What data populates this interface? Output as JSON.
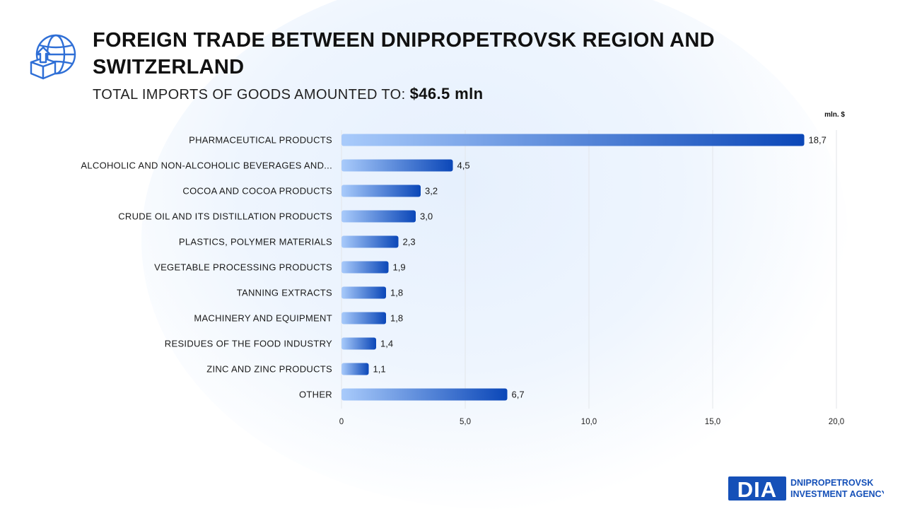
{
  "header": {
    "title": "FOREIGN TRADE BETWEEN DNIPROPETROVSK REGION AND SWITZERLAND",
    "subtitle_label": "TOTAL IMPORTS OF GOODS AMOUNTED TO:",
    "subtitle_value": "$46.5  mln",
    "icon": "globe-box-upload-icon"
  },
  "chart_data": {
    "type": "bar",
    "orientation": "horizontal",
    "unit_label": "mln. $",
    "categories": [
      "PHARMACEUTICAL PRODUCTS",
      "ALCOHOLIC AND NON-ALCOHOLIC BEVERAGES AND...",
      "COCOA AND COCOA PRODUCTS",
      "CRUDE OIL AND ITS DISTILLATION PRODUCTS",
      "PLASTICS, POLYMER MATERIALS",
      "VEGETABLE PROCESSING PRODUCTS",
      "TANNING EXTRACTS",
      "MACHINERY AND EQUIPMENT",
      "RESIDUES OF THE FOOD INDUSTRY",
      "ZINC AND ZINC PRODUCTS",
      "OTHER"
    ],
    "values": [
      18.7,
      4.5,
      3.2,
      3.0,
      2.3,
      1.9,
      1.8,
      1.8,
      1.4,
      1.1,
      6.7
    ],
    "value_labels": [
      "18,7",
      "4,5",
      "3,2",
      "3,0",
      "2,3",
      "1,9",
      "1,8",
      "1,8",
      "1,4",
      "1,1",
      "6,7"
    ],
    "xlim": [
      0,
      20
    ],
    "xticks": [
      0,
      5,
      10,
      15,
      20
    ],
    "xtick_labels": [
      "0",
      "5,0",
      "10,0",
      "15,0",
      "20,0"
    ],
    "grid": true,
    "colors": {
      "bar_start": "#a9cbfb",
      "bar_end": "#0b47b8",
      "grid": "#e3e6ea"
    }
  },
  "logo": {
    "mark": "DIA",
    "line1": "DNIPROPETROVSK",
    "line2": "INVESTMENT AGENCY",
    "color": "#1550b8"
  }
}
